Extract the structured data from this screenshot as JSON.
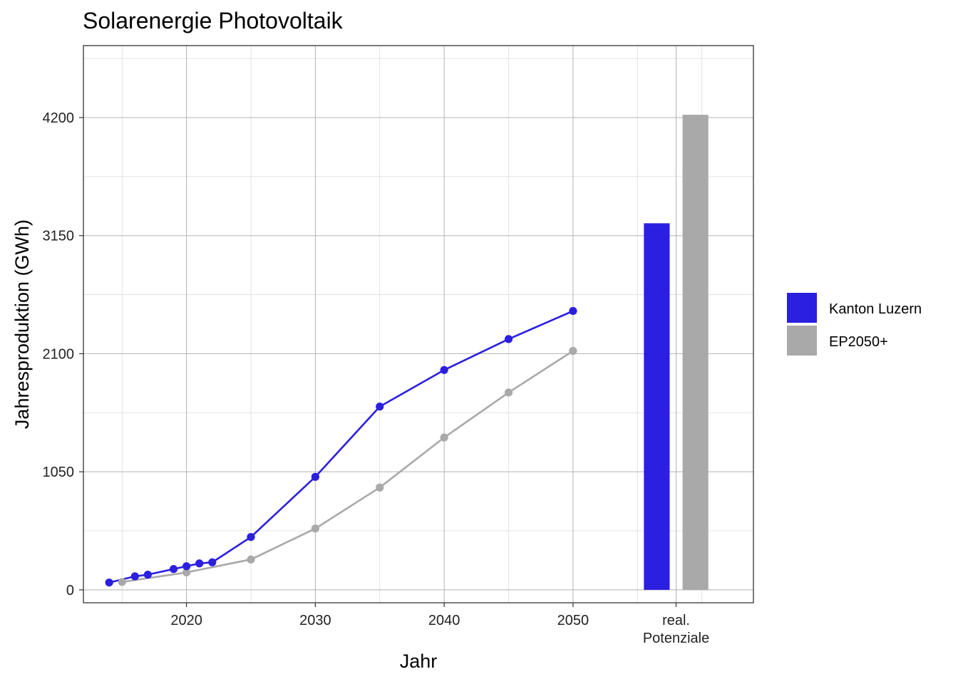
{
  "chart_data": {
    "type": "line",
    "title": "Solarenergie Photovoltaik",
    "xlabel": "Jahr",
    "ylabel": "Jahresproduktion (GWh)",
    "xlim": [
      2012,
      2064
    ],
    "ylim": [
      -115,
      4840
    ],
    "x_ticks": [
      2020,
      2030,
      2040,
      2050
    ],
    "y_ticks": [
      0,
      1050,
      2100,
      3150,
      4200
    ],
    "extra_category": {
      "line1": "real.",
      "line2": "Potenziale"
    },
    "grid": true,
    "legend_position": "right",
    "series": [
      {
        "name": "Kanton Luzern",
        "color": "#2b1fe0",
        "x": [
          2014,
          2016,
          2017,
          2019,
          2020,
          2021,
          2022,
          2025,
          2030,
          2035,
          2040,
          2045,
          2050
        ],
        "y": [
          65,
          120,
          135,
          185,
          210,
          235,
          245,
          470,
          1005,
          1630,
          1955,
          2230,
          2480
        ]
      },
      {
        "name": "EP2050+",
        "color": "#a9a9a9",
        "x": [
          2015,
          2020,
          2025,
          2030,
          2035,
          2040,
          2045,
          2050
        ],
        "y": [
          70,
          155,
          270,
          545,
          910,
          1355,
          1755,
          2125
        ]
      }
    ],
    "potential_bars": [
      {
        "series": "Kanton Luzern",
        "value": 3260,
        "color": "#2b1fe0"
      },
      {
        "series": "EP2050+",
        "value": 4225,
        "color": "#a9a9a9"
      }
    ]
  }
}
